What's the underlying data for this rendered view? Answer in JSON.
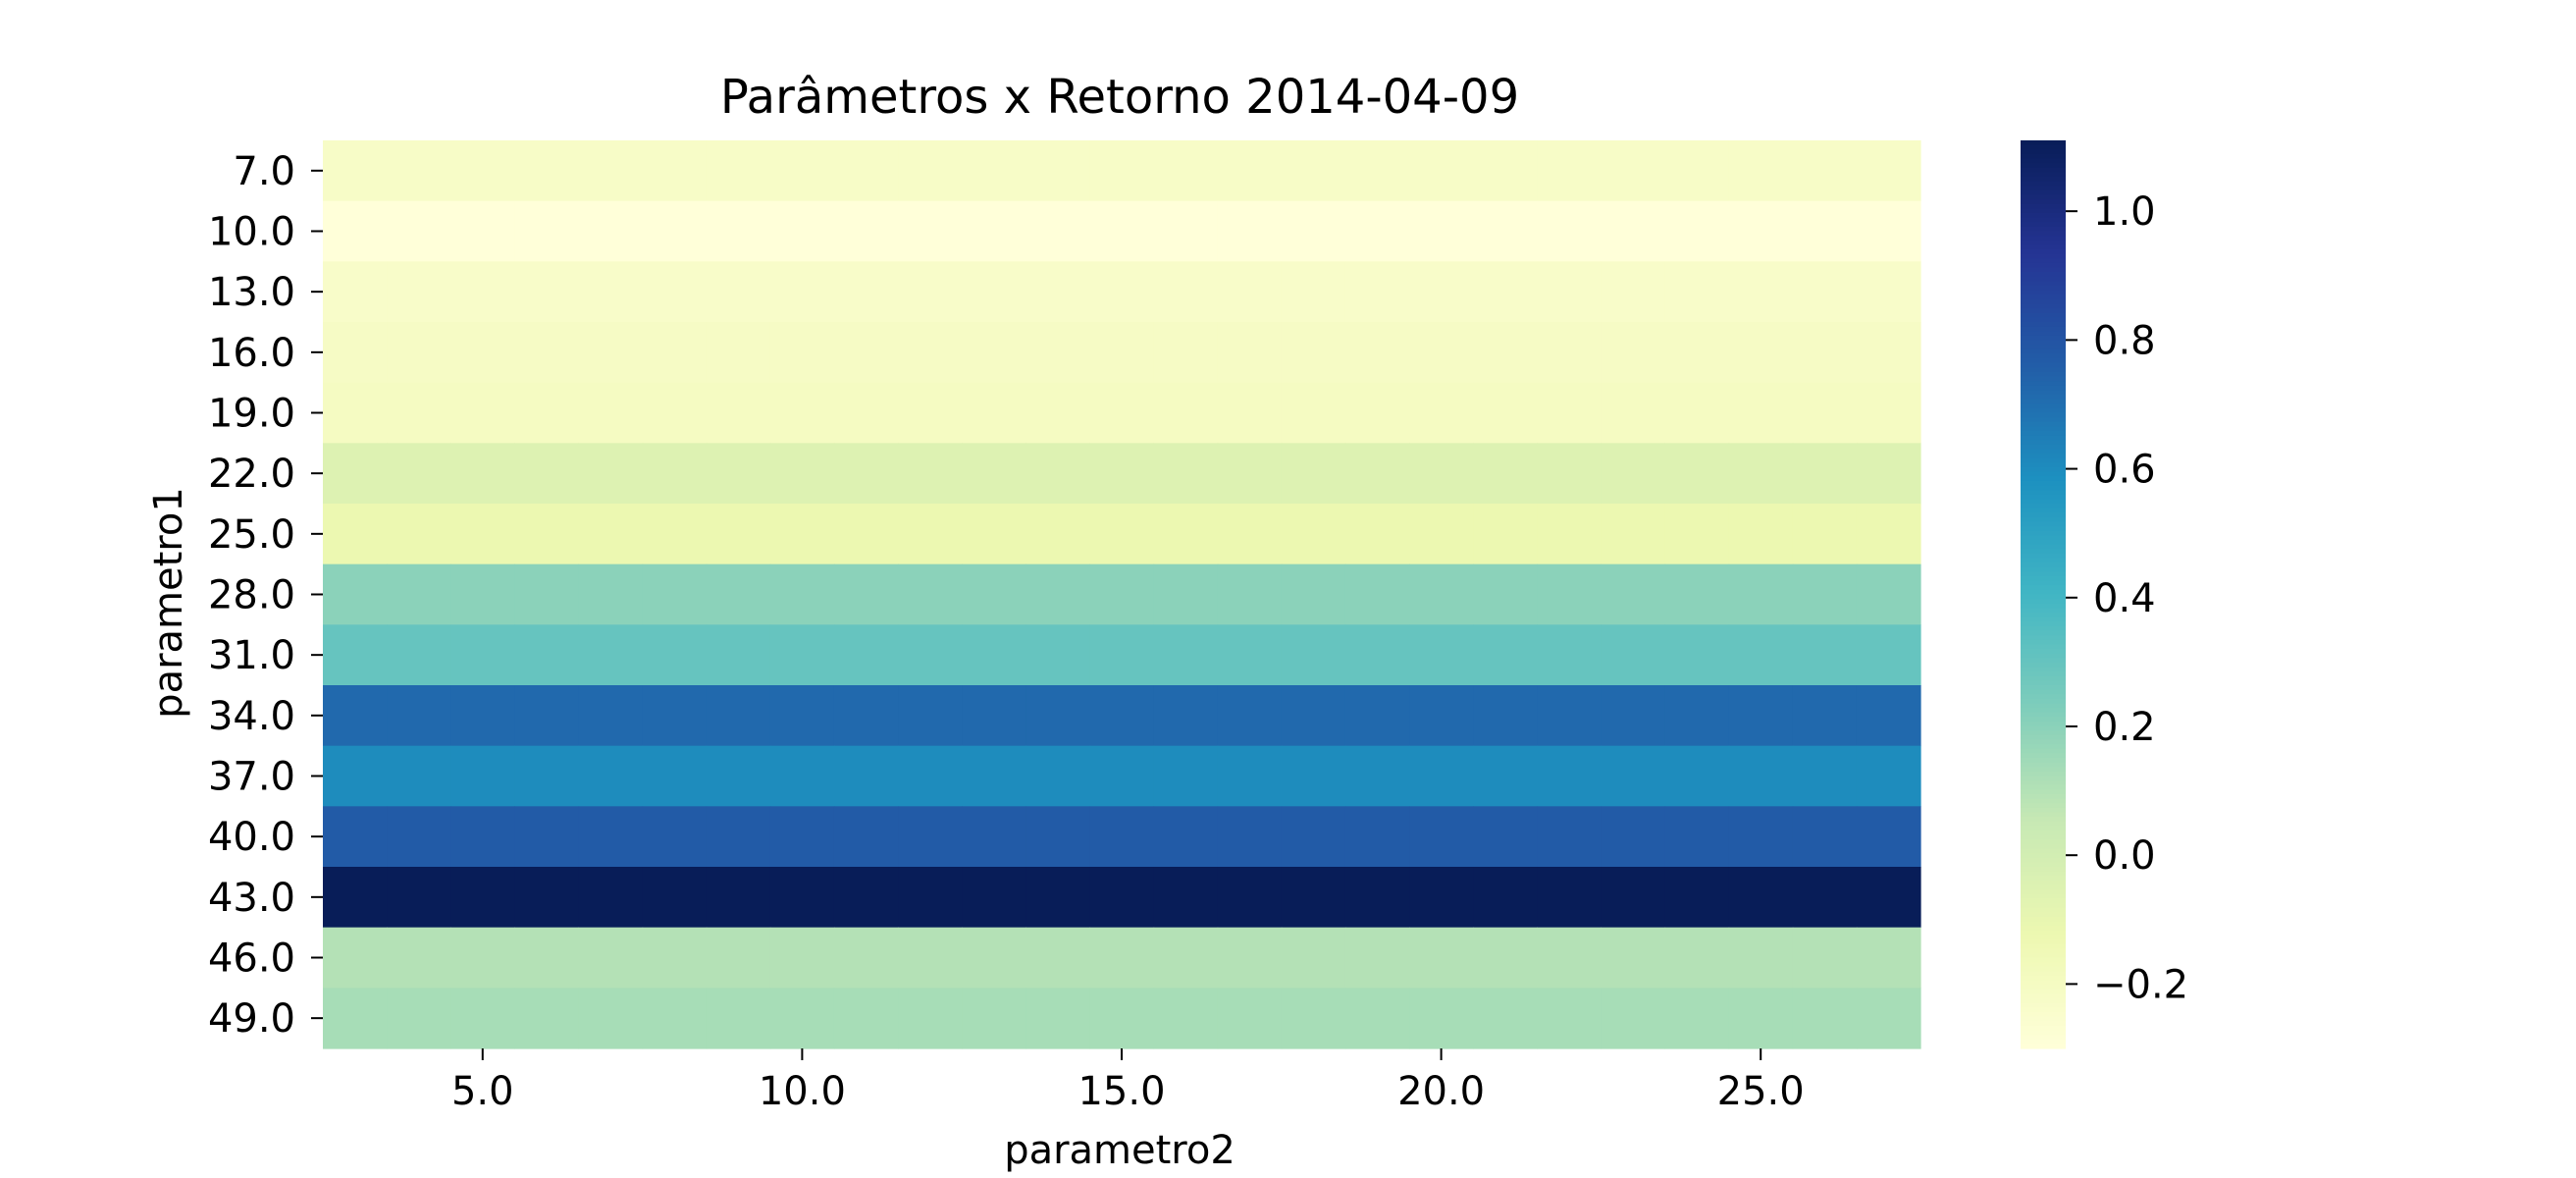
{
  "chart_data": {
    "type": "heatmap",
    "title": "Parâmetros x Retorno 2014-04-09",
    "xlabel": "parametro2",
    "ylabel": "parametro1",
    "x": [
      3,
      4,
      5,
      6,
      7,
      8,
      9,
      10,
      11,
      12,
      13,
      14,
      15,
      16,
      17,
      18,
      19,
      20,
      21,
      22,
      23,
      24,
      25,
      26,
      27
    ],
    "x_tick_labels": [
      "5.0",
      "10.0",
      "15.0",
      "20.0",
      "25.0"
    ],
    "x_tick_values": [
      5,
      10,
      15,
      20,
      25
    ],
    "y": [
      7,
      10,
      13,
      16,
      19,
      22,
      25,
      28,
      31,
      34,
      37,
      40,
      43,
      46,
      49
    ],
    "y_tick_labels": [
      "7.0",
      "10.0",
      "13.0",
      "16.0",
      "19.0",
      "22.0",
      "25.0",
      "28.0",
      "31.0",
      "34.0",
      "37.0",
      "40.0",
      "43.0",
      "46.0",
      "49.0"
    ],
    "row_values": [
      -0.22,
      -0.3,
      -0.23,
      -0.21,
      -0.2,
      -0.05,
      -0.12,
      0.2,
      0.3,
      0.72,
      0.6,
      0.77,
      1.11,
      0.1,
      0.13
    ],
    "values_note_axis": "values constant across parametro2 for each parametro1 row",
    "colorbar": {
      "range": [
        -0.3,
        1.11
      ],
      "ticks": [
        -0.2,
        0.0,
        0.2,
        0.4,
        0.6,
        0.8,
        1.0
      ],
      "tick_labels": [
        "−0.2",
        "0.0",
        "0.2",
        "0.4",
        "0.6",
        "0.8",
        "1.0"
      ],
      "colormap": "YlGnBu",
      "colors": [
        "#ffffd9",
        "#edf8b1",
        "#c7e9b4",
        "#7fcdbb",
        "#41b6c4",
        "#1d91c0",
        "#225ea8",
        "#253494",
        "#081d58"
      ]
    },
    "grid": false,
    "legend": "colorbar-right"
  }
}
